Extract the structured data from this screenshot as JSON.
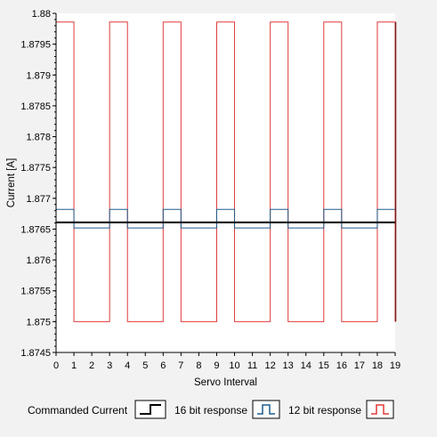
{
  "chart_data": {
    "type": "line",
    "title": "",
    "xlabel": "Servo Interval",
    "ylabel": "Current [A]",
    "xlim": [
      0,
      19
    ],
    "ylim": [
      1.8745,
      1.88
    ],
    "x_ticks": [
      0,
      1,
      2,
      3,
      4,
      5,
      6,
      7,
      8,
      9,
      10,
      11,
      12,
      13,
      14,
      15,
      16,
      17,
      18,
      19
    ],
    "y_ticks": [
      "1.88",
      "1.8795",
      "1.879",
      "1.8785",
      "1.878",
      "1.8775",
      "1.877",
      "1.8765",
      "1.876",
      "1.8755",
      "1.875",
      "1.8745"
    ],
    "grid": false,
    "legend_position": "bottom",
    "series": [
      {
        "name": "Commanded Current",
        "color": "#000000",
        "step": true,
        "x": [
          0,
          19
        ],
        "y": [
          1.87661,
          1.87661
        ]
      },
      {
        "name": "16 bit response",
        "color": "#1f5b8a",
        "step": true,
        "x": [
          0,
          1,
          3,
          4,
          6,
          7,
          9,
          10,
          12,
          13,
          15,
          16,
          18,
          19
        ],
        "y": [
          1.87682,
          1.87652,
          1.87682,
          1.87652,
          1.87682,
          1.87652,
          1.87682,
          1.87652,
          1.87682,
          1.87652,
          1.87682,
          1.87652,
          1.87682,
          1.87682
        ]
      },
      {
        "name": "12 bit response",
        "color": "#e03a3a",
        "step": true,
        "x": [
          0,
          1,
          3,
          4,
          6,
          7,
          9,
          10,
          12,
          13,
          15,
          16,
          18,
          19
        ],
        "y": [
          1.87986,
          1.875,
          1.87986,
          1.875,
          1.87986,
          1.875,
          1.87986,
          1.875,
          1.87986,
          1.875,
          1.87986,
          1.875,
          1.87986,
          1.875
        ]
      }
    ]
  }
}
